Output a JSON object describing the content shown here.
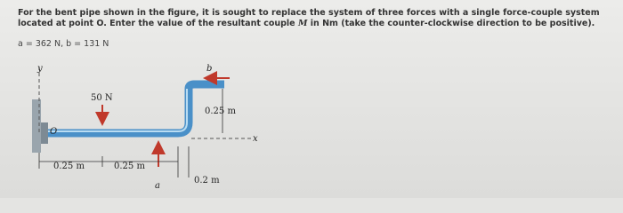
{
  "question": {
    "before": "For the bent pipe shown in the figure, it is sought to replace the system of three forces with a single force-couple system located at point O. Enter the value of the resultant couple",
    "symbol": "M",
    "after": "in Nm (take the counter-clockwise direction to be positive).",
    "given": "a = 362 N, b = 131 N"
  },
  "figure": {
    "y_label": "y",
    "b_label": "b",
    "force_label": "50 N",
    "dim_vertical": "0.25 m",
    "origin_label": "O",
    "x_label": "x",
    "dim_1": "0.25 m",
    "dim_2": "0.25 m",
    "a_label": "a",
    "dim_3": "0.2 m"
  }
}
